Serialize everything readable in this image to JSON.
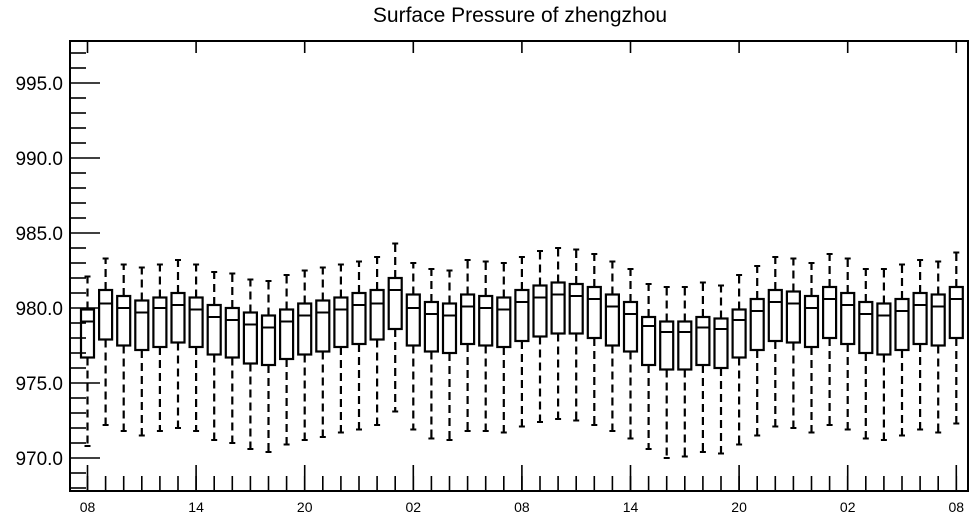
{
  "chart_data": {
    "type": "box",
    "title": "Surface Pressure of zhengzhou",
    "xlabel": "",
    "ylabel": "",
    "ylim": [
      967.8,
      997.8
    ],
    "y_ticks": [
      "970.0",
      "975.0",
      "980.0",
      "985.0",
      "990.0",
      "995.0"
    ],
    "y_tick_values": [
      970,
      975,
      980,
      985,
      990,
      995
    ],
    "x_range": [
      0,
      48.5
    ],
    "x_ticks": [
      {
        "label": "08",
        "x": 0
      },
      {
        "label": "14",
        "x": 6
      },
      {
        "label": "20",
        "x": 12
      },
      {
        "label": "02",
        "x": 18
      },
      {
        "label": "08",
        "x": 24
      },
      {
        "label": "14",
        "x": 30
      },
      {
        "label": "20",
        "x": 36
      },
      {
        "label": "02",
        "x": 42
      },
      {
        "label": "08",
        "x": 48
      }
    ],
    "boxes": [
      {
        "x": 0,
        "min": 970.8,
        "q1": 976.7,
        "median": 979.1,
        "q3": 979.9,
        "max": 982.1
      },
      {
        "x": 1,
        "min": 972.2,
        "q1": 977.9,
        "median": 980.3,
        "q3": 981.2,
        "max": 983.3
      },
      {
        "x": 2,
        "min": 971.8,
        "q1": 977.5,
        "median": 980.0,
        "q3": 980.8,
        "max": 982.9
      },
      {
        "x": 3,
        "min": 971.5,
        "q1": 977.2,
        "median": 979.7,
        "q3": 980.5,
        "max": 982.7
      },
      {
        "x": 4,
        "min": 971.8,
        "q1": 977.4,
        "median": 980.0,
        "q3": 980.7,
        "max": 982.9
      },
      {
        "x": 5,
        "min": 972.0,
        "q1": 977.7,
        "median": 980.2,
        "q3": 981.0,
        "max": 983.2
      },
      {
        "x": 6,
        "min": 971.8,
        "q1": 977.4,
        "median": 979.9,
        "q3": 980.7,
        "max": 982.9
      },
      {
        "x": 7,
        "min": 971.2,
        "q1": 976.9,
        "median": 979.4,
        "q3": 980.2,
        "max": 982.4
      },
      {
        "x": 8,
        "min": 971.0,
        "q1": 976.7,
        "median": 979.2,
        "q3": 980.0,
        "max": 982.3
      },
      {
        "x": 9,
        "min": 970.6,
        "q1": 976.3,
        "median": 978.9,
        "q3": 979.7,
        "max": 981.9
      },
      {
        "x": 10,
        "min": 970.4,
        "q1": 976.2,
        "median": 978.7,
        "q3": 979.5,
        "max": 981.8
      },
      {
        "x": 11,
        "min": 970.9,
        "q1": 976.6,
        "median": 979.1,
        "q3": 979.9,
        "max": 982.2
      },
      {
        "x": 12,
        "min": 971.2,
        "q1": 976.9,
        "median": 979.5,
        "q3": 980.3,
        "max": 982.5
      },
      {
        "x": 13,
        "min": 971.4,
        "q1": 977.1,
        "median": 979.7,
        "q3": 980.5,
        "max": 982.7
      },
      {
        "x": 14,
        "min": 971.7,
        "q1": 977.4,
        "median": 979.9,
        "q3": 980.7,
        "max": 982.9
      },
      {
        "x": 15,
        "min": 971.9,
        "q1": 977.6,
        "median": 980.2,
        "q3": 981.0,
        "max": 983.1
      },
      {
        "x": 16,
        "min": 972.2,
        "q1": 977.9,
        "median": 980.3,
        "q3": 981.2,
        "max": 983.4
      },
      {
        "x": 17,
        "min": 973.1,
        "q1": 978.6,
        "median": 981.2,
        "q3": 982.0,
        "max": 984.3
      },
      {
        "x": 18,
        "min": 971.9,
        "q1": 977.5,
        "median": 980.0,
        "q3": 980.9,
        "max": 983.0
      },
      {
        "x": 19,
        "min": 971.3,
        "q1": 977.1,
        "median": 979.6,
        "q3": 980.4,
        "max": 982.6
      },
      {
        "x": 20,
        "min": 971.2,
        "q1": 977.0,
        "median": 979.5,
        "q3": 980.3,
        "max": 982.5
      },
      {
        "x": 21,
        "min": 971.8,
        "q1": 977.6,
        "median": 980.1,
        "q3": 980.9,
        "max": 983.2
      },
      {
        "x": 22,
        "min": 971.8,
        "q1": 977.5,
        "median": 980.0,
        "q3": 980.8,
        "max": 983.1
      },
      {
        "x": 23,
        "min": 971.7,
        "q1": 977.4,
        "median": 979.9,
        "q3": 980.7,
        "max": 983.0
      },
      {
        "x": 24,
        "min": 972.1,
        "q1": 977.8,
        "median": 980.4,
        "q3": 981.2,
        "max": 983.4
      },
      {
        "x": 25,
        "min": 972.4,
        "q1": 978.1,
        "median": 980.7,
        "q3": 981.5,
        "max": 983.8
      },
      {
        "x": 26,
        "min": 972.6,
        "q1": 978.3,
        "median": 980.9,
        "q3": 981.7,
        "max": 984.0
      },
      {
        "x": 27,
        "min": 972.5,
        "q1": 978.3,
        "median": 980.8,
        "q3": 981.6,
        "max": 983.9
      },
      {
        "x": 28,
        "min": 972.2,
        "q1": 978.0,
        "median": 980.6,
        "q3": 981.4,
        "max": 983.6
      },
      {
        "x": 29,
        "min": 971.8,
        "q1": 977.5,
        "median": 980.1,
        "q3": 980.9,
        "max": 983.1
      },
      {
        "x": 30,
        "min": 971.3,
        "q1": 977.1,
        "median": 979.6,
        "q3": 980.4,
        "max": 982.6
      },
      {
        "x": 31,
        "min": 970.6,
        "q1": 976.2,
        "median": 978.8,
        "q3": 979.4,
        "max": 981.6
      },
      {
        "x": 32,
        "min": 970.0,
        "q1": 975.9,
        "median": 978.4,
        "q3": 979.1,
        "max": 981.4
      },
      {
        "x": 33,
        "min": 970.1,
        "q1": 975.9,
        "median": 978.4,
        "q3": 979.1,
        "max": 981.4
      },
      {
        "x": 34,
        "min": 970.4,
        "q1": 976.2,
        "median": 978.7,
        "q3": 979.4,
        "max": 981.7
      },
      {
        "x": 35,
        "min": 970.3,
        "q1": 976.0,
        "median": 978.6,
        "q3": 979.3,
        "max": 981.5
      },
      {
        "x": 36,
        "min": 970.9,
        "q1": 976.7,
        "median": 979.2,
        "q3": 979.9,
        "max": 982.2
      },
      {
        "x": 37,
        "min": 971.5,
        "q1": 977.2,
        "median": 979.8,
        "q3": 980.6,
        "max": 982.8
      },
      {
        "x": 38,
        "min": 972.1,
        "q1": 977.8,
        "median": 980.4,
        "q3": 981.2,
        "max": 983.4
      },
      {
        "x": 39,
        "min": 972.0,
        "q1": 977.7,
        "median": 980.3,
        "q3": 981.1,
        "max": 983.3
      },
      {
        "x": 40,
        "min": 971.7,
        "q1": 977.4,
        "median": 980.0,
        "q3": 980.8,
        "max": 983.0
      },
      {
        "x": 41,
        "min": 972.2,
        "q1": 978.0,
        "median": 980.6,
        "q3": 981.4,
        "max": 983.6
      },
      {
        "x": 42,
        "min": 971.9,
        "q1": 977.6,
        "median": 980.2,
        "q3": 981.0,
        "max": 983.3
      },
      {
        "x": 43,
        "min": 971.3,
        "q1": 977.0,
        "median": 979.6,
        "q3": 980.4,
        "max": 982.6
      },
      {
        "x": 44,
        "min": 971.2,
        "q1": 976.9,
        "median": 979.5,
        "q3": 980.3,
        "max": 982.6
      },
      {
        "x": 45,
        "min": 971.5,
        "q1": 977.2,
        "median": 979.8,
        "q3": 980.6,
        "max": 982.9
      },
      {
        "x": 46,
        "min": 971.9,
        "q1": 977.6,
        "median": 980.2,
        "q3": 981.0,
        "max": 983.2
      },
      {
        "x": 47,
        "min": 971.7,
        "q1": 977.5,
        "median": 980.1,
        "q3": 980.9,
        "max": 983.1
      },
      {
        "x": 48,
        "min": 972.3,
        "q1": 978.0,
        "median": 980.6,
        "q3": 981.4,
        "max": 983.7
      }
    ],
    "grid": false,
    "legend": "none"
  }
}
